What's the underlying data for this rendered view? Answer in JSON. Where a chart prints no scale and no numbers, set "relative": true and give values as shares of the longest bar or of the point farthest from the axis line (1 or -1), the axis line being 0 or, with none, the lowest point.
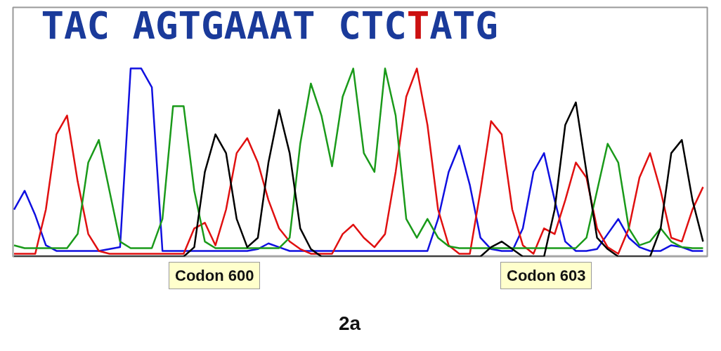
{
  "chart_data": {
    "type": "line",
    "title": "2a",
    "relative": true,
    "grid": false,
    "categories": [
      null,
      null,
      null,
      null,
      null,
      null,
      null,
      null,
      null,
      null,
      null,
      null,
      null,
      null,
      null,
      null,
      null,
      null,
      null,
      null,
      null,
      null,
      null,
      null,
      null,
      null,
      null,
      null,
      null,
      null,
      null,
      null,
      null,
      null,
      null,
      null,
      null,
      null,
      null,
      null,
      null,
      null,
      null,
      null,
      null,
      null,
      null,
      null,
      null,
      null,
      null,
      null,
      null,
      null,
      null,
      null,
      null,
      null,
      null,
      null,
      null,
      null,
      null,
      null,
      null,
      null
    ],
    "series": [
      {
        "color": "#1010e0",
        "values": [
          0.25,
          0.35,
          0.22,
          0.06,
          0.03,
          0.03,
          0.03,
          0.03,
          0.03,
          0.04,
          0.05,
          1.0,
          1.0,
          0.9,
          0.03,
          0.03,
          0.03,
          0.03,
          0.03,
          0.03,
          0.03,
          0.03,
          0.03,
          0.04,
          0.07,
          0.05,
          0.03,
          0.03,
          0.03,
          0.03,
          0.03,
          0.03,
          0.03,
          0.03,
          0.03,
          0.03,
          0.03,
          0.03,
          0.03,
          0.03,
          0.2,
          0.45,
          0.59,
          0.38,
          0.1,
          0.04,
          0.03,
          0.03,
          0.15,
          0.45,
          0.55,
          0.3,
          0.08,
          0.03,
          0.03,
          0.04,
          0.12,
          0.2,
          0.1,
          0.05,
          0.03,
          0.03,
          0.06,
          0.05,
          0.03,
          0.03
        ]
      },
      {
        "color": "#e01010",
        "values": [
          0.015,
          0.015,
          0.015,
          0.25,
          0.65,
          0.75,
          0.4,
          0.12,
          0.03,
          0.015,
          0.015,
          0.015,
          0.015,
          0.015,
          0.015,
          0.015,
          0.015,
          0.15,
          0.18,
          0.06,
          0.25,
          0.55,
          0.63,
          0.5,
          0.3,
          0.15,
          0.08,
          0.04,
          0.015,
          0.015,
          0.015,
          0.12,
          0.17,
          0.1,
          0.05,
          0.12,
          0.45,
          0.85,
          1.0,
          0.7,
          0.25,
          0.06,
          0.015,
          0.015,
          0.35,
          0.72,
          0.65,
          0.25,
          0.06,
          0.015,
          0.15,
          0.12,
          0.3,
          0.5,
          0.42,
          0.15,
          0.05,
          0.015,
          0.15,
          0.42,
          0.55,
          0.35,
          0.1,
          0.08,
          0.25,
          0.37
        ]
      },
      {
        "color": "#1a9a1a",
        "values": [
          0.06,
          0.045,
          0.045,
          0.045,
          0.045,
          0.045,
          0.12,
          0.5,
          0.62,
          0.35,
          0.08,
          0.045,
          0.045,
          0.045,
          0.2,
          0.8,
          0.8,
          0.35,
          0.08,
          0.045,
          0.045,
          0.045,
          0.045,
          0.045,
          0.045,
          0.045,
          0.1,
          0.6,
          0.92,
          0.75,
          0.48,
          0.85,
          1.0,
          0.55,
          0.45,
          1.0,
          0.75,
          0.2,
          0.1,
          0.2,
          0.1,
          0.055,
          0.045,
          0.045,
          0.045,
          0.045,
          0.045,
          0.045,
          0.045,
          0.045,
          0.045,
          0.045,
          0.045,
          0.045,
          0.1,
          0.35,
          0.6,
          0.5,
          0.15,
          0.06,
          0.08,
          0.15,
          0.08,
          0.05,
          0.045,
          0.045
        ]
      },
      {
        "color": "#000000",
        "values": [
          0,
          0,
          0,
          0,
          0,
          0,
          0,
          0,
          0,
          0,
          0,
          0,
          0,
          0,
          0,
          0,
          0,
          0.05,
          0.45,
          0.65,
          0.55,
          0.2,
          0.05,
          0.1,
          0.5,
          0.78,
          0.55,
          0.15,
          0.04,
          0,
          0,
          0,
          0,
          0,
          0,
          0,
          0,
          0,
          0,
          0,
          0,
          0,
          0,
          0,
          0,
          0.05,
          0.08,
          0.04,
          0,
          0,
          0,
          0.25,
          0.7,
          0.82,
          0.45,
          0.1,
          0.04,
          0,
          0,
          0,
          0,
          0.15,
          0.55,
          0.62,
          0.3,
          0.08
        ]
      }
    ],
    "annotations": [
      "TAC AGTGAAAT CTC",
      "T",
      "ATG",
      "Codon 600",
      "Codon 603"
    ]
  }
}
